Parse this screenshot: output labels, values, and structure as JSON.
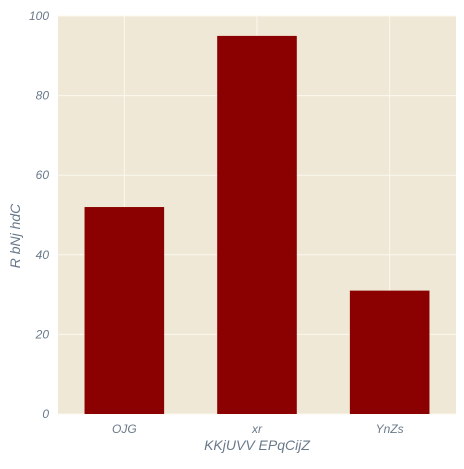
{
  "chart_data": {
    "type": "bar",
    "title": "",
    "xlabel": "KKjUVV EPqCijZ",
    "ylabel": "R bNj hdC",
    "categories": [
      "OJG",
      "xr",
      "YnZs"
    ],
    "values": [
      52,
      95,
      31
    ],
    "ylim": [
      0,
      100
    ],
    "yticks": [
      "0",
      "20",
      "40",
      "60",
      "80",
      "100"
    ],
    "grid": true,
    "legend": "none"
  },
  "colors": {
    "bar": "#8b0000",
    "plot_background": "#efe8d6",
    "grid": "#fbf8ef",
    "text": "#6a7a8a"
  }
}
